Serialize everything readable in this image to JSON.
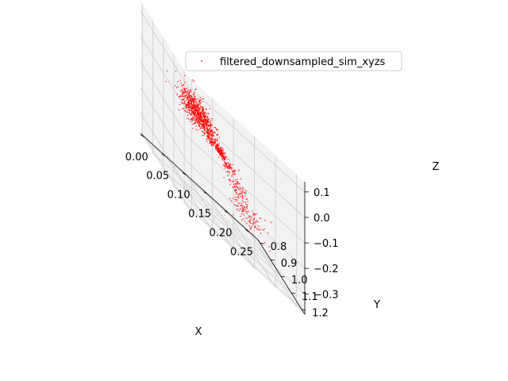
{
  "chart_data": {
    "type": "scatter",
    "projection": "3d",
    "title": "",
    "xlabel": "X",
    "ylabel": "Y",
    "zlabel": "Z",
    "xlim": [
      -0.01,
      0.27
    ],
    "ylim": [
      0.78,
      1.23
    ],
    "zlim": [
      -0.38,
      0.14
    ],
    "xticks": [
      "0.00",
      "0.05",
      "0.10",
      "0.15",
      "0.20",
      "0.25"
    ],
    "yticks": [
      "0.8",
      "0.9",
      "1.0",
      "1.1",
      "1.2"
    ],
    "zticks": [
      "0.1",
      "0.0",
      "−0.1",
      "−0.2",
      "−0.3"
    ],
    "grid": true,
    "legend": {
      "position": "top-right"
    },
    "colors": {
      "point": "#ff0000",
      "pane": "#f2f2f2",
      "grid": "#cccccc"
    },
    "series": [
      {
        "name": "filtered_downsampled_sim_xyzs",
        "color": "#ff0000",
        "marker": "point",
        "structure": "dense ellipsoidal cluster tapering into a thin diagonal trail",
        "points": [
          {
            "x": 0.02,
            "y": 1.17,
            "z": 0.02,
            "count": 520,
            "spread": [
              0.015,
              0.03,
              0.03
            ]
          },
          {
            "x": 0.05,
            "y": 1.15,
            "z": 0.0,
            "count": 180,
            "spread": [
              0.012,
              0.025,
              0.02
            ]
          },
          {
            "x": 0.06,
            "y": 1.13,
            "z": -0.03,
            "count": 80,
            "spread": [
              0.01,
              0.015,
              0.015
            ]
          },
          {
            "x": 0.09,
            "y": 1.08,
            "z": -0.07,
            "count": 90,
            "spread": [
              0.008,
              0.01,
              0.01
            ]
          },
          {
            "x": 0.12,
            "y": 1.03,
            "z": -0.1,
            "count": 110,
            "spread": [
              0.006,
              0.01,
              0.008
            ]
          },
          {
            "x": 0.15,
            "y": 0.99,
            "z": -0.14,
            "count": 70,
            "spread": [
              0.008,
              0.01,
              0.01
            ]
          },
          {
            "x": 0.18,
            "y": 0.95,
            "z": -0.2,
            "count": 70,
            "spread": [
              0.01,
              0.012,
              0.015
            ]
          },
          {
            "x": 0.21,
            "y": 0.9,
            "z": -0.27,
            "count": 60,
            "spread": [
              0.015,
              0.015,
              0.02
            ]
          },
          {
            "x": 0.23,
            "y": 0.87,
            "z": -0.3,
            "count": 60,
            "spread": [
              0.018,
              0.02,
              0.025
            ]
          }
        ]
      }
    ]
  }
}
